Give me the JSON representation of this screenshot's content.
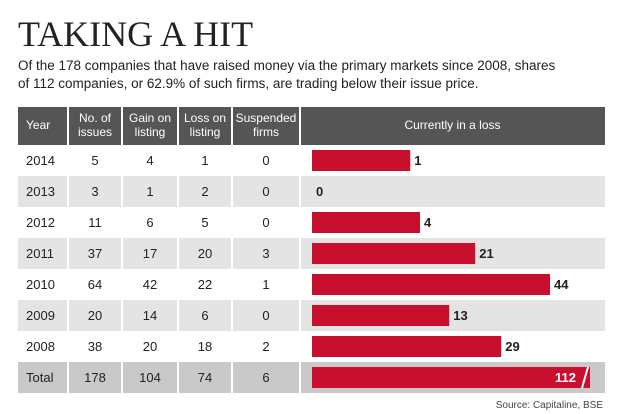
{
  "header": {
    "title": "TAKING A HIT",
    "subtitle_lines": [
      "Of the 178 companies that have raised money via the primary markets since 2008, shares",
      "of 112 companies, or 62.9% of such firms, are trading below their issue price."
    ]
  },
  "table": {
    "columns": [
      [
        "Year"
      ],
      [
        "No. of",
        "issues"
      ],
      [
        "Gain on",
        "listing"
      ],
      [
        "Loss on",
        "listing"
      ],
      [
        "Suspended",
        "firms"
      ],
      [
        "Currently in a loss"
      ]
    ],
    "rows": [
      [
        "2014",
        5,
        4,
        1,
        0,
        1
      ],
      [
        "2013",
        3,
        1,
        2,
        0,
        0
      ],
      [
        "2012",
        11,
        6,
        5,
        0,
        4
      ],
      [
        "2011",
        37,
        17,
        20,
        3,
        21
      ],
      [
        "2010",
        64,
        42,
        22,
        1,
        44
      ],
      [
        "2009",
        20,
        14,
        6,
        0,
        13
      ],
      [
        "2008",
        38,
        20,
        18,
        2,
        29
      ],
      [
        "Total",
        178,
        104,
        74,
        6,
        112
      ]
    ],
    "bar_color": "#c8102e"
  },
  "source": "Source: Capitaline, BSE"
}
